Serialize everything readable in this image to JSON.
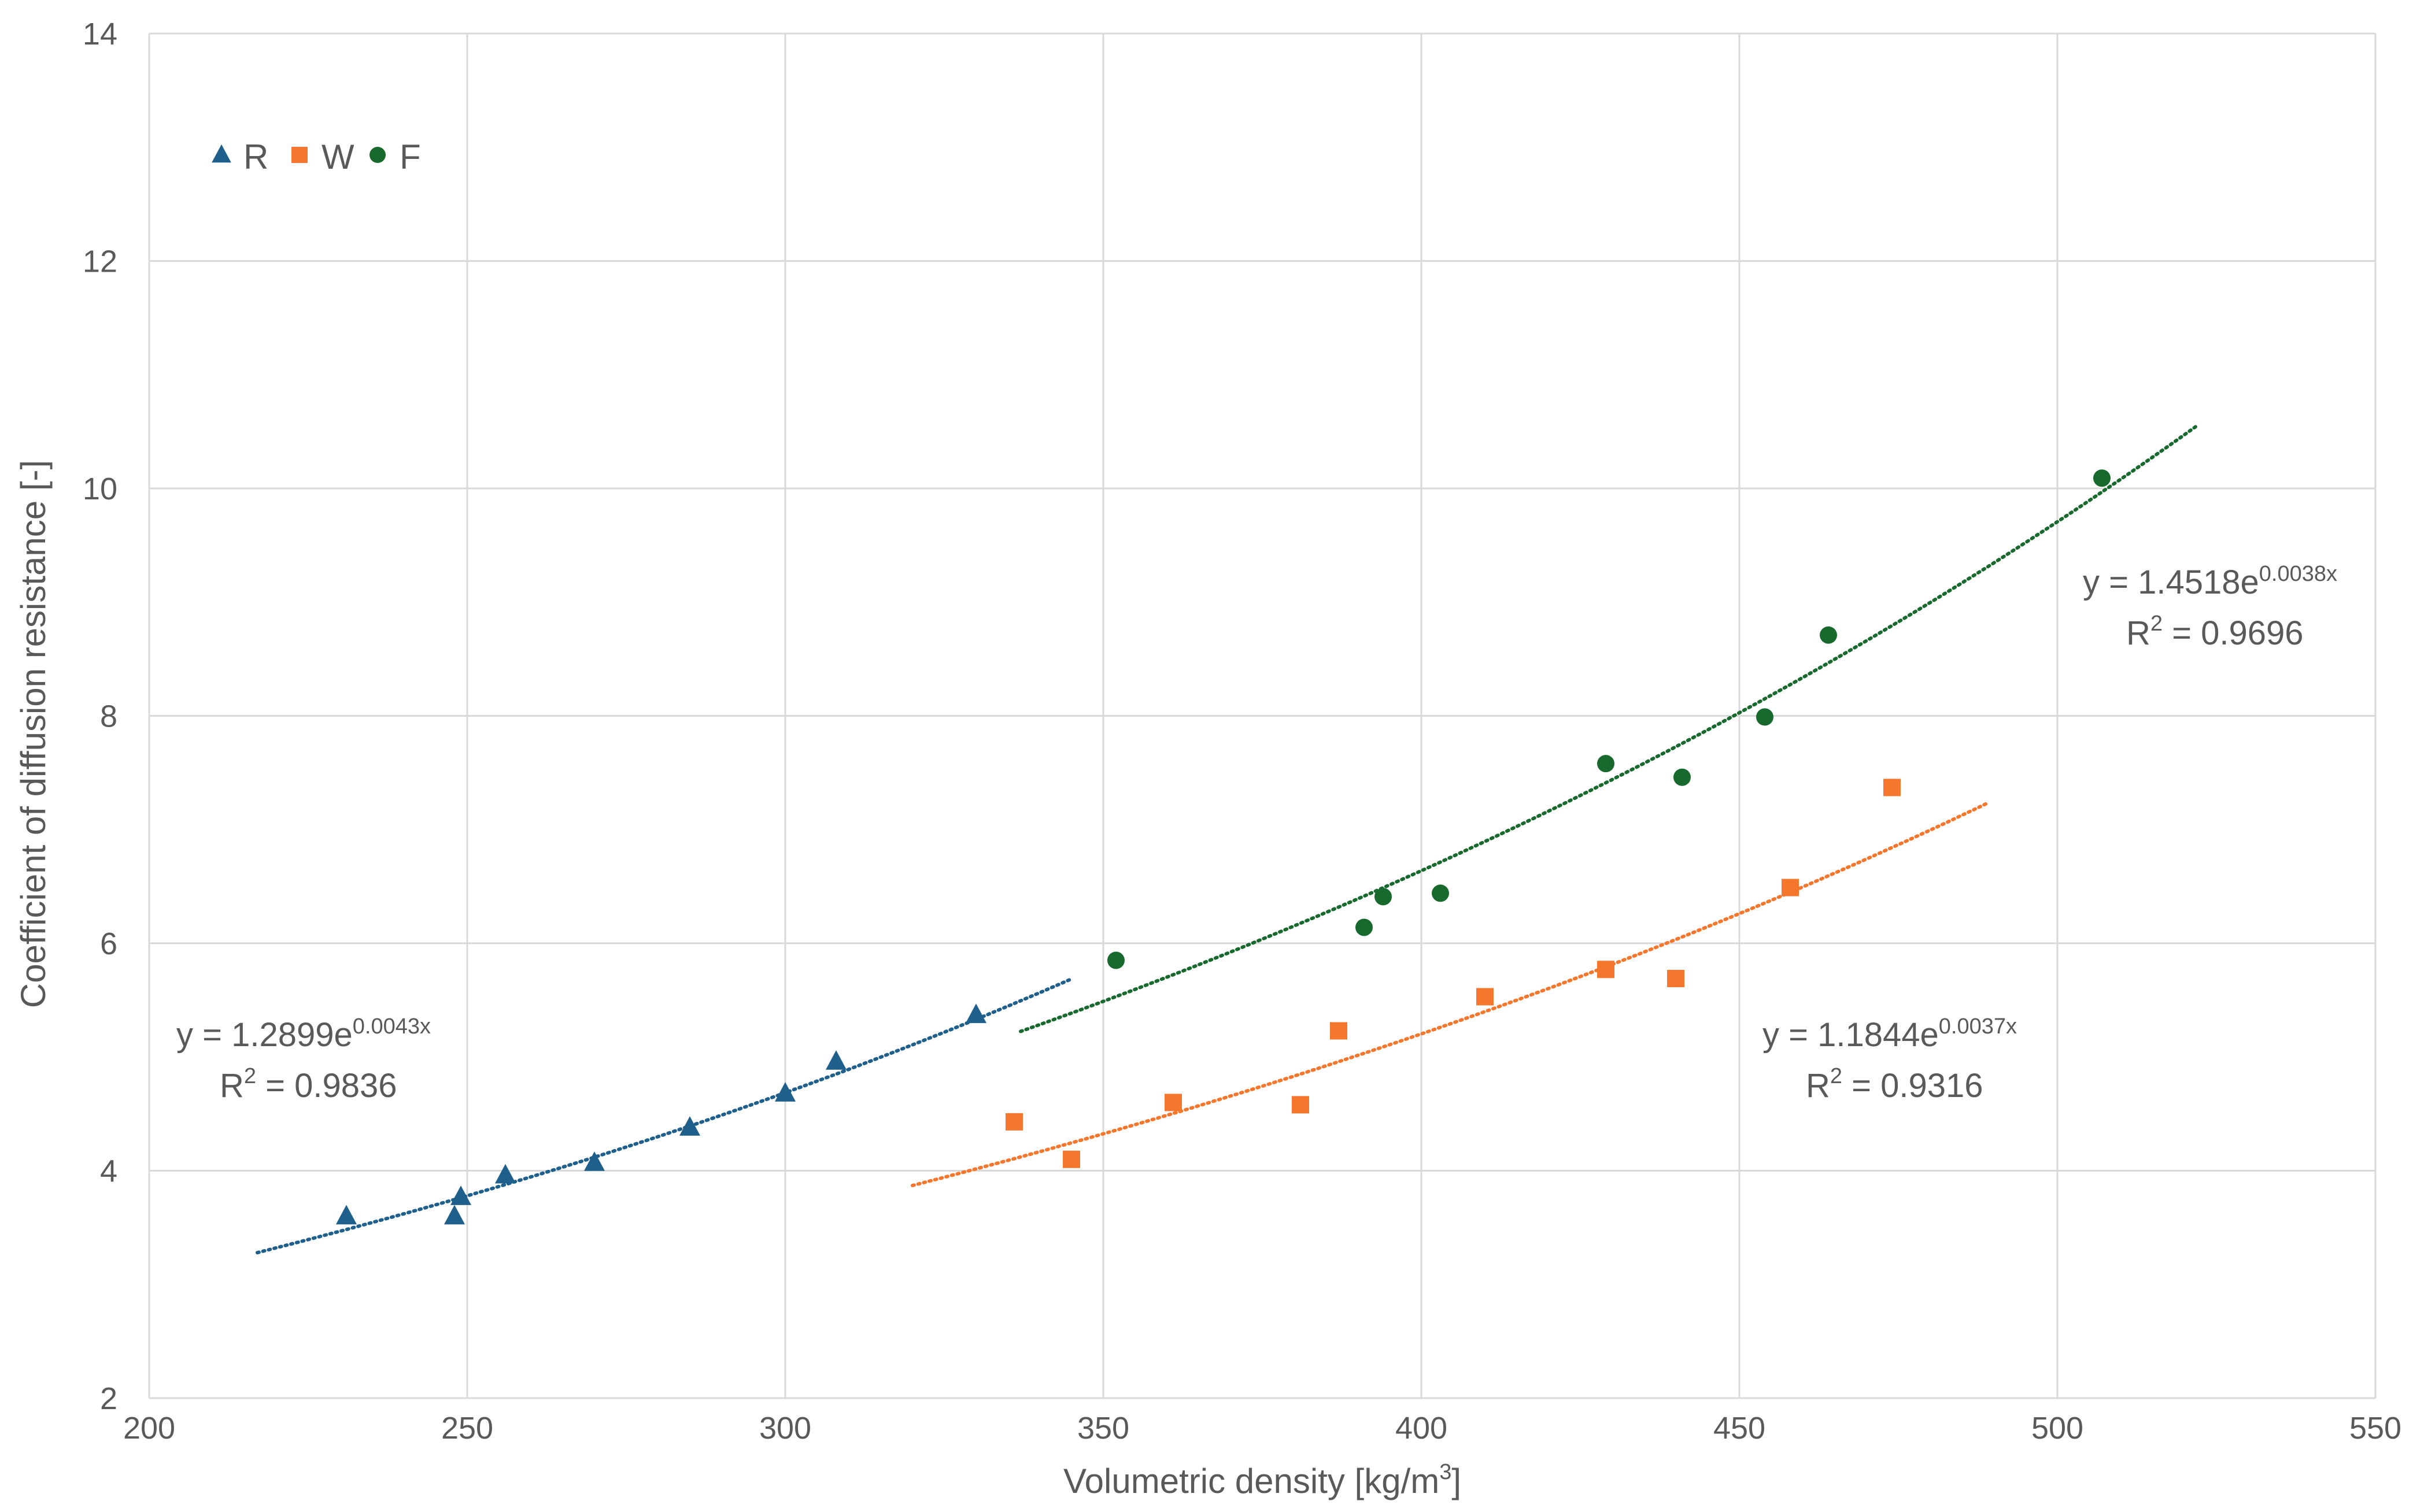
{
  "chart_data": {
    "type": "scatter",
    "title": "",
    "xlabel": "Volumetric density [kg/m",
    "xlabel_sup": "3",
    "xlabel_suffix": "]",
    "ylabel": "Coefficient of diffusion resistance [-]",
    "xlim": [
      200,
      550
    ],
    "ylim": [
      2,
      14
    ],
    "x_ticks": [
      200,
      250,
      300,
      350,
      400,
      450,
      500,
      550
    ],
    "y_ticks": [
      2,
      4,
      6,
      8,
      10,
      12,
      14
    ],
    "grid": true,
    "legend_position": "top-left",
    "series": [
      {
        "name": "R",
        "marker": "triangle",
        "color": "#1f5f8b",
        "points": [
          [
            231,
            3.6
          ],
          [
            248,
            3.6
          ],
          [
            249,
            3.77
          ],
          [
            256,
            3.96
          ],
          [
            270,
            4.07
          ],
          [
            285,
            4.38
          ],
          [
            300,
            4.68
          ],
          [
            308,
            4.96
          ],
          [
            330,
            5.37
          ]
        ],
        "trendline": {
          "type": "exponential",
          "a": 1.2899,
          "b": 0.0043,
          "x_range": [
            217,
            345
          ],
          "equation_prefix": "y = 1.2899e",
          "equation_exponent": "0.0043x",
          "r2_prefix": "R",
          "r2_sup": "2",
          "r2_suffix": " = 0.9836"
        }
      },
      {
        "name": "W",
        "marker": "square",
        "color": "#f4772d",
        "points": [
          [
            336,
            4.43
          ],
          [
            345,
            4.1
          ],
          [
            361,
            4.6
          ],
          [
            381,
            4.58
          ],
          [
            387,
            5.23
          ],
          [
            410,
            5.53
          ],
          [
            429,
            5.77
          ],
          [
            440,
            5.69
          ],
          [
            458,
            6.49
          ],
          [
            474,
            7.37
          ]
        ],
        "trendline": {
          "type": "exponential",
          "a": 1.1844,
          "b": 0.0037,
          "x_range": [
            320,
            489
          ],
          "equation_prefix": "y = 1.1844e",
          "equation_exponent": "0.0037x",
          "r2_prefix": "R",
          "r2_sup": "2",
          "r2_suffix": " = 0.9316"
        }
      },
      {
        "name": "F",
        "marker": "circle",
        "color": "#18692d",
        "points": [
          [
            352,
            5.85
          ],
          [
            391,
            6.14
          ],
          [
            394,
            6.41
          ],
          [
            403,
            6.44
          ],
          [
            429,
            7.58
          ],
          [
            441,
            7.46
          ],
          [
            454,
            7.99
          ],
          [
            464,
            8.71
          ],
          [
            507,
            10.09
          ]
        ],
        "trendline": {
          "type": "exponential",
          "a": 1.4518,
          "b": 0.0038,
          "x_range": [
            337,
            522
          ],
          "equation_prefix": "y = 1.4518e",
          "equation_exponent": "0.0038x",
          "r2_prefix": "R",
          "r2_sup": "2",
          "r2_suffix": " = 0.9696"
        }
      }
    ]
  }
}
